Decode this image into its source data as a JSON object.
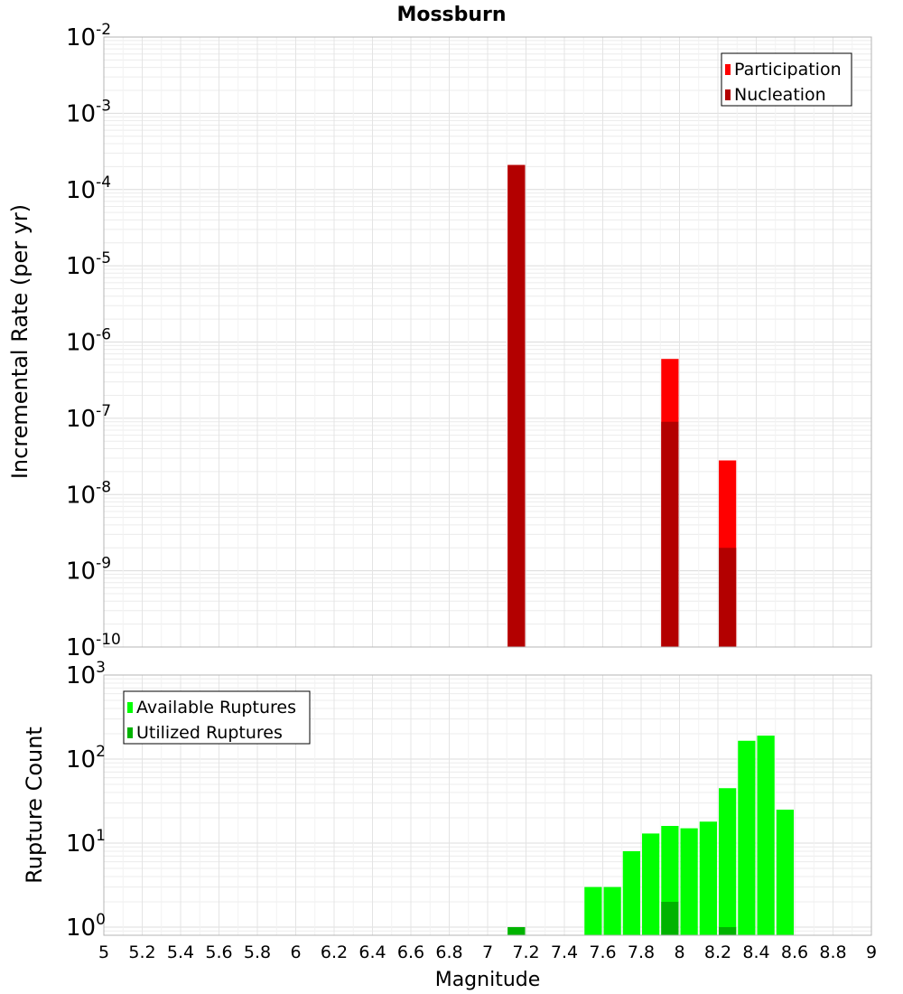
{
  "title": "Mossburn",
  "x_axis": {
    "label": "Magnitude",
    "range": [
      5,
      9
    ],
    "tick_labels": [
      "5",
      "5.2",
      "5.4",
      "5.6",
      "5.8",
      "6",
      "6.2",
      "6.4",
      "6.6",
      "6.8",
      "7",
      "7.2",
      "7.4",
      "7.6",
      "7.8",
      "8",
      "8.2",
      "8.4",
      "8.6",
      "8.8",
      "9"
    ]
  },
  "chart_data": [
    {
      "type": "bar",
      "scale": "log",
      "ylabel": "Incremental Rate (per yr)",
      "xlabel": "Magnitude",
      "xlim": [
        5,
        9
      ],
      "ylim": [
        1e-10,
        0.01
      ],
      "ytick_exponents": [
        "-10",
        "-9",
        "-8",
        "-7",
        "-6",
        "-5",
        "-4",
        "-3",
        "-2"
      ],
      "grid": true,
      "legend_placement": "top-right",
      "bin_width": 0.1,
      "series": [
        {
          "name": "Participation",
          "color": "#ff0000",
          "points": [
            {
              "x": 7.15,
              "y": 0.00021
            },
            {
              "x": 7.95,
              "y": 6e-07
            },
            {
              "x": 8.25,
              "y": 2.8e-08
            }
          ]
        },
        {
          "name": "Nucleation",
          "color": "#b30000",
          "points": [
            {
              "x": 7.15,
              "y": 0.00021
            },
            {
              "x": 7.95,
              "y": 9e-08
            },
            {
              "x": 8.25,
              "y": 2e-09
            }
          ]
        }
      ]
    },
    {
      "type": "bar",
      "scale": "log",
      "ylabel": "Rupture Count",
      "xlabel": "Magnitude",
      "xlim": [
        5,
        9
      ],
      "ylim": [
        0.8,
        1000
      ],
      "ytick_exponents": [
        "0",
        "1",
        "2",
        "3"
      ],
      "grid": true,
      "legend_placement": "top-left",
      "bin_width": 0.1,
      "series": [
        {
          "name": "Available Ruptures",
          "color": "#00ff00",
          "points": [
            {
              "x": 7.15,
              "y": 1
            },
            {
              "x": 7.55,
              "y": 3
            },
            {
              "x": 7.65,
              "y": 3
            },
            {
              "x": 7.75,
              "y": 8
            },
            {
              "x": 7.85,
              "y": 13
            },
            {
              "x": 7.95,
              "y": 16
            },
            {
              "x": 8.05,
              "y": 15
            },
            {
              "x": 8.15,
              "y": 18
            },
            {
              "x": 8.25,
              "y": 45
            },
            {
              "x": 8.35,
              "y": 165
            },
            {
              "x": 8.45,
              "y": 190
            },
            {
              "x": 8.55,
              "y": 25
            }
          ]
        },
        {
          "name": "Utilized Ruptures",
          "color": "#00b300",
          "points": [
            {
              "x": 7.15,
              "y": 1
            },
            {
              "x": 7.95,
              "y": 2
            },
            {
              "x": 8.25,
              "y": 1
            }
          ]
        }
      ]
    }
  ]
}
